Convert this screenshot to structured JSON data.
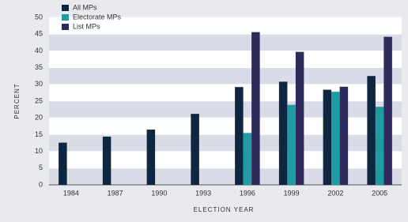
{
  "chart_data": {
    "type": "bar",
    "categories": [
      "1984",
      "1987",
      "1990",
      "1993",
      "1996",
      "1999",
      "2002",
      "2005"
    ],
    "series": [
      {
        "name": "All MPs",
        "color": "#0f2640",
        "values": [
          12.6,
          14.4,
          16.5,
          21.2,
          29.2,
          30.8,
          28.4,
          32.5
        ]
      },
      {
        "name": "Electorate MPs",
        "color": "#1e9ba3",
        "values": [
          null,
          null,
          null,
          null,
          15.5,
          23.9,
          27.8,
          23.3
        ]
      },
      {
        "name": "List MPs",
        "color": "#2c2b5c",
        "values": [
          null,
          null,
          null,
          null,
          45.6,
          39.7,
          29.3,
          44.2
        ]
      }
    ],
    "y_label": "PERCENT",
    "x_label": "ELECTION YEAR",
    "ylim": [
      0,
      50
    ],
    "yticks": [
      0,
      5,
      10,
      15,
      20,
      25,
      30,
      35,
      40,
      45,
      50
    ],
    "grid": true,
    "legend": "top-left"
  }
}
